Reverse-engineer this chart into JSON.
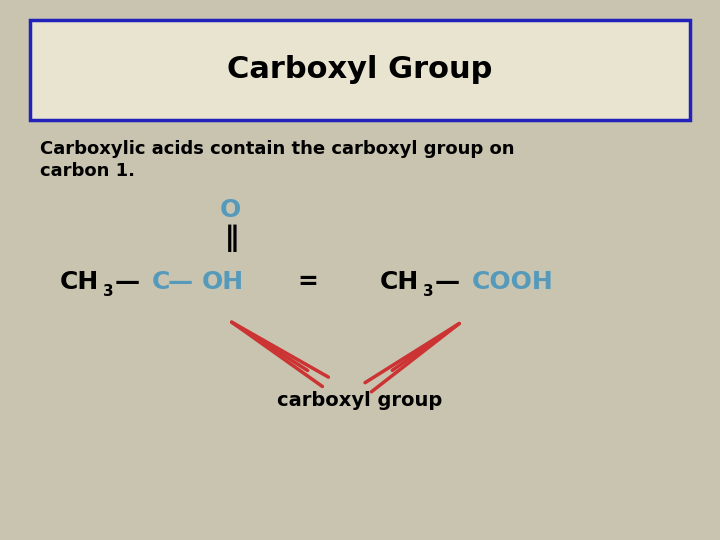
{
  "title": "Carboxyl Group",
  "background_color": "#c8c4b0",
  "title_box_color": "#e8e4d0",
  "title_box_border": "#2222bb",
  "title_color": "#000000",
  "title_fontsize": 22,
  "body_text_line1": "Carboxylic acids contain the carboxyl group on",
  "body_text_line2": "carbon 1.",
  "body_fontsize": 13,
  "black_color": "#000000",
  "blue_color": "#5599bb",
  "red_color": "#cc3333",
  "formula_fontsize": 18,
  "sub_fontsize": 11,
  "carboxyl_label": "carboxyl group",
  "carboxyl_fontsize": 14
}
